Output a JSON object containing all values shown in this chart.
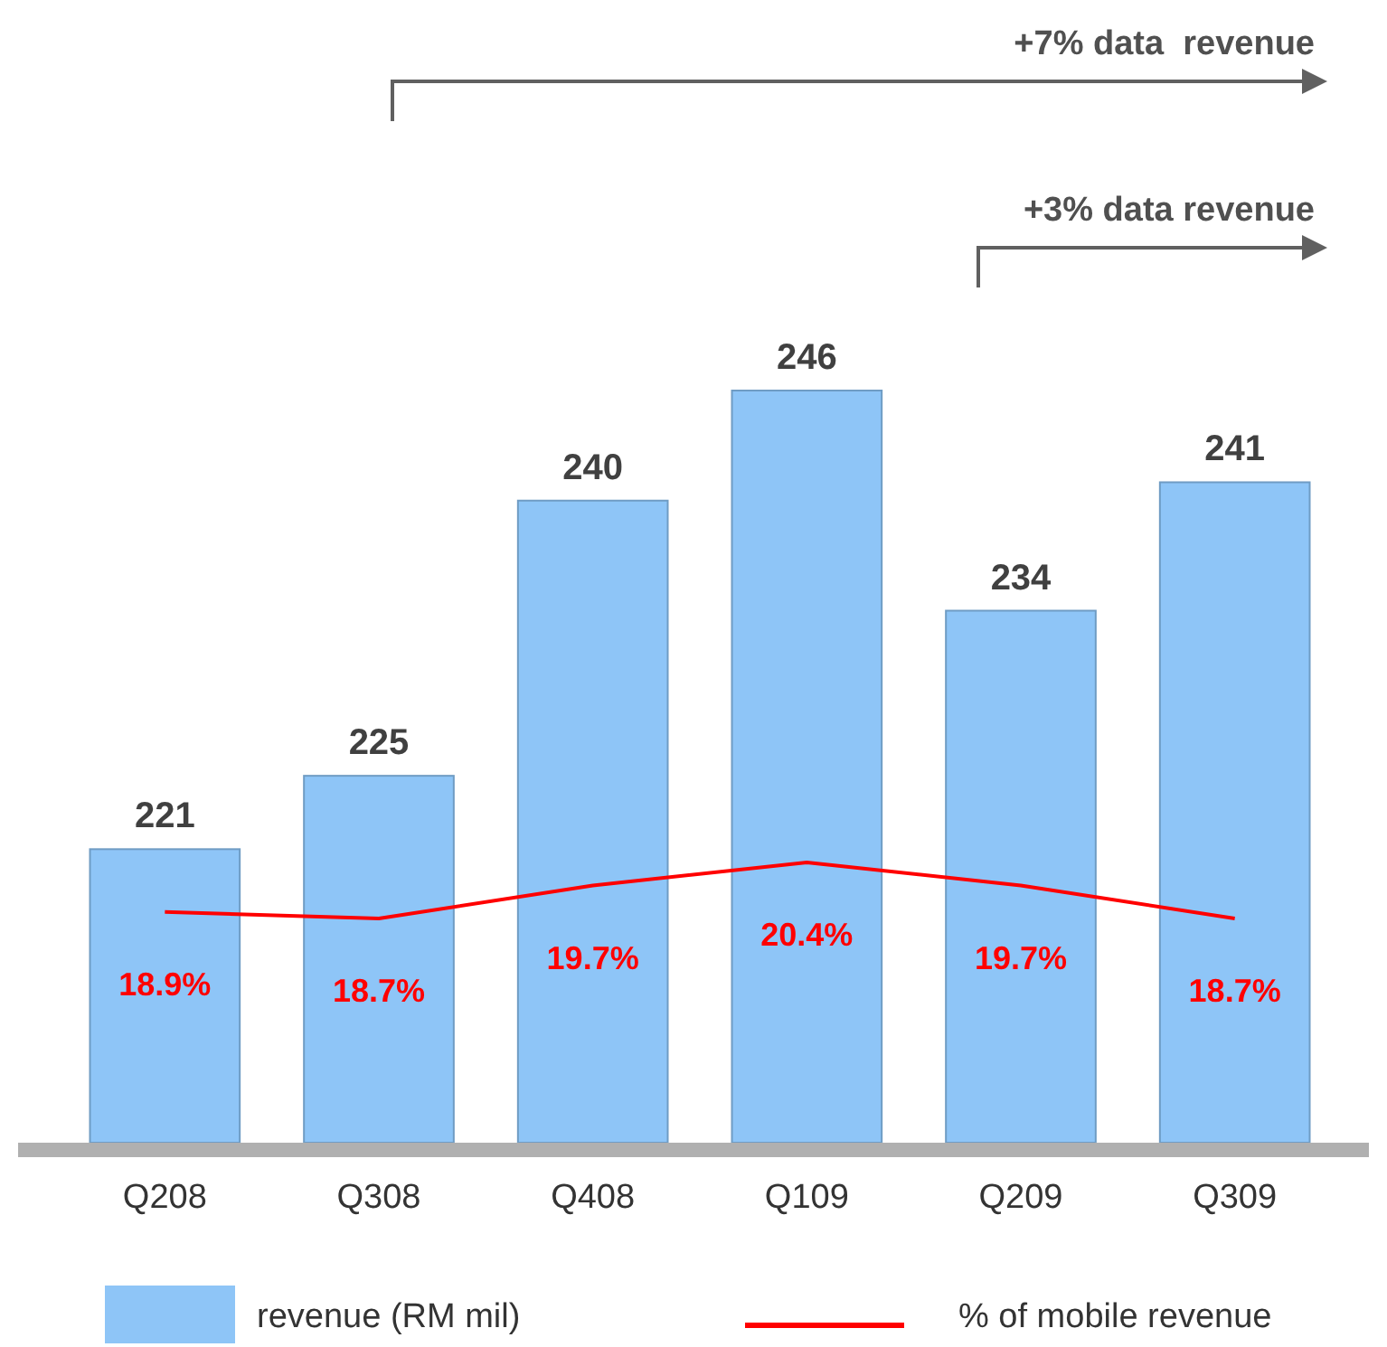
{
  "chart_data": {
    "type": "bar",
    "categories": [
      "Q208",
      "Q308",
      "Q408",
      "Q109",
      "Q209",
      "Q309"
    ],
    "series": [
      {
        "name": "revenue (RM mil)",
        "color": "#8ec5f7",
        "values": [
          221,
          225,
          240,
          246,
          234,
          241
        ],
        "value_labels": [
          "221",
          "225",
          "240",
          "246",
          "234",
          "241"
        ]
      },
      {
        "name": "% of mobile revenue",
        "type": "line",
        "axis": "y2",
        "color": "#ff0000",
        "values": [
          18.9,
          18.7,
          19.7,
          20.4,
          19.7,
          18.7
        ],
        "value_labels": [
          "18.9%",
          "18.7%",
          "19.7%",
          "20.4%",
          "19.7%",
          "18.7%"
        ]
      }
    ],
    "ylim": [
      205,
      246
    ],
    "legend": "bottom",
    "marker": "none",
    "annotations": [
      "+7% data  revenue",
      "+3% data revenue"
    ]
  }
}
